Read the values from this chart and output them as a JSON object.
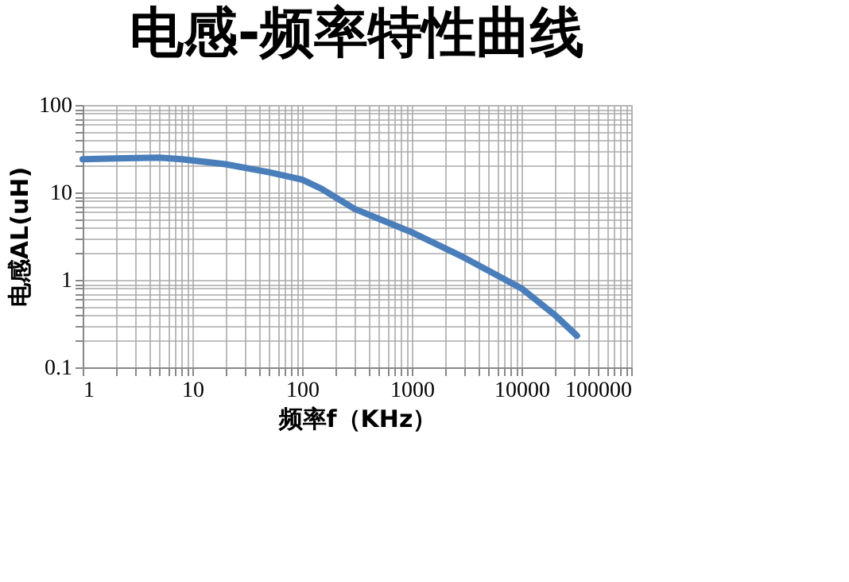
{
  "chart_data": {
    "type": "line",
    "title": "电感-频率特性曲线",
    "xlabel": "频率f（KHz）",
    "ylabel": "电感AL(uH)",
    "x": [
      1,
      2,
      5,
      8,
      20,
      50,
      100,
      150,
      300,
      1000,
      3000,
      10000,
      20000,
      32000
    ],
    "series": [
      {
        "color": "#4a7ebb",
        "values": [
          24,
          24.5,
          25,
          24,
          21,
          17,
          14,
          11,
          6.5,
          3.5,
          1.8,
          0.8,
          0.4,
          0.23
        ]
      }
    ],
    "xlim": [
      1,
      100000
    ],
    "ylim": [
      0.1,
      100
    ],
    "xticks": [
      1,
      10,
      100,
      1000,
      10000,
      100000
    ],
    "yticks": [
      0.1,
      1,
      10,
      100
    ],
    "log": "xy",
    "grid": true,
    "marker": "none",
    "line_style": "solid"
  }
}
